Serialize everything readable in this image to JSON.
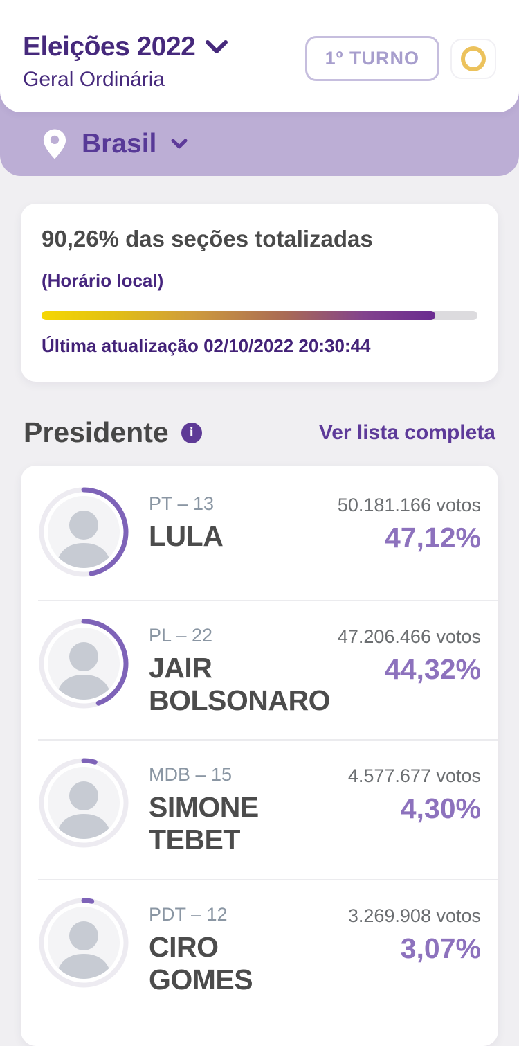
{
  "header": {
    "title": "Eleições 2022",
    "subtitle": "Geral Ordinária",
    "round_button": "1º TURNO"
  },
  "location_bar": {
    "label": "Brasil"
  },
  "totalization": {
    "headline": "90,26% das seções totalizadas",
    "timezone_note": "(Horário local)",
    "progress_percent": 90.26,
    "last_update": "Última atualização 02/10/2022 20:30:44"
  },
  "section": {
    "title": "Presidente",
    "see_full_list": "Ver lista completa"
  },
  "candidates": [
    {
      "party": "PT – 13",
      "name": "LULA",
      "votes": "50.181.166 votos",
      "percent": "47,12%",
      "percent_value": 47.12
    },
    {
      "party": "PL – 22",
      "name": "JAIR BOLSONARO",
      "votes": "47.206.466 votos",
      "percent": "44,32%",
      "percent_value": 44.32
    },
    {
      "party": "MDB – 15",
      "name": "SIMONE TEBET",
      "votes": "4.577.677 votos",
      "percent": "4,30%",
      "percent_value": 4.3
    },
    {
      "party": "PDT – 12",
      "name": "CIRO GOMES",
      "votes": "3.269.908 votos",
      "percent": "3,07%",
      "percent_value": 3.07
    }
  ],
  "icons": {
    "title_chevron": "chevron-down",
    "location_pin": "location-pin",
    "location_chevron": "chevron-down",
    "round_ring": "gold-ring",
    "info": "info"
  },
  "colors": {
    "brand_purple_dark": "#46297c",
    "brand_purple": "#5d3a99",
    "percent_purple": "#8d72bd",
    "band_lilac": "#bcaed5",
    "ring_purple": "#7e63b8",
    "progress_yellow": "#f5d703",
    "progress_purple": "#6a2b90",
    "gold": "#ecc25c",
    "page_bg": "#f0eff2"
  }
}
